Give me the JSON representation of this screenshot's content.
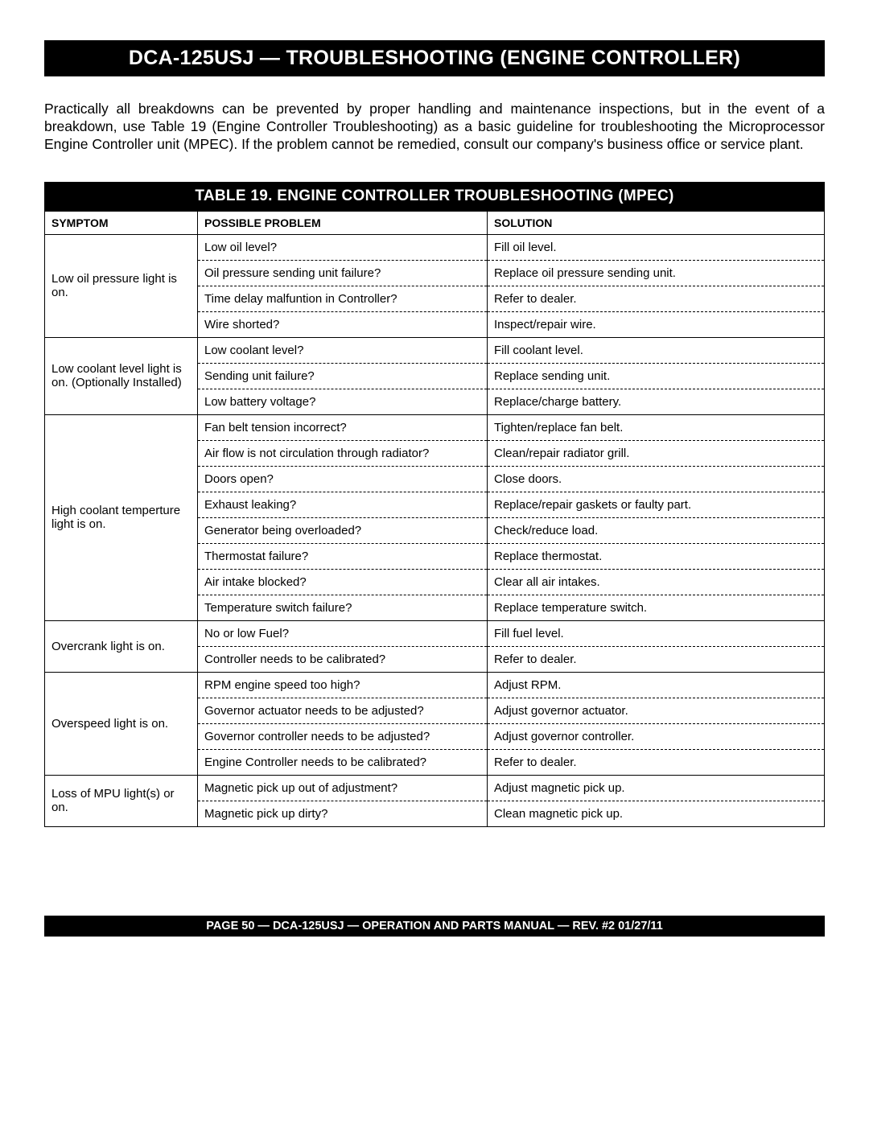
{
  "title": "DCA-125USJ — TROUBLESHOOTING (ENGINE CONTROLLER)",
  "intro": "Practically all breakdowns can be prevented by proper handling and maintenance inspections, but in the event of a breakdown, use  Table 19 (Engine Controller Troubleshooting) as a basic guideline for troubleshooting the Microprocessor Engine Controller unit (MPEC).  If the problem cannot be remedied, consult our company's business office or service plant.",
  "table_title": "TABLE 19. ENGINE CONTROLLER TROUBLESHOOTING (MPEC)",
  "columns": {
    "symptom": "Symptom",
    "problem": "Possible Problem",
    "solution": "Solution"
  },
  "groups": [
    {
      "symptom": "Low oil pressure light is on.",
      "rows": [
        {
          "problem": "Low oil level?",
          "solution": "Fill oil level."
        },
        {
          "problem": "Oil pressure sending unit failure?",
          "solution": "Replace oil pressure sending unit."
        },
        {
          "problem": "Time delay malfuntion in Controller?",
          "solution": "Refer to dealer."
        },
        {
          "problem": "Wire shorted?",
          "solution": "Inspect/repair wire."
        }
      ]
    },
    {
      "symptom": "Low coolant level light is on. (Optionally Installed)",
      "rows": [
        {
          "problem": "Low coolant level?",
          "solution": "Fill coolant level."
        },
        {
          "problem": "Sending unit failure?",
          "solution": "Replace sending unit."
        },
        {
          "problem": "Low battery voltage?",
          "solution": "Replace/charge battery."
        }
      ]
    },
    {
      "symptom": "High coolant temperture light is on.",
      "rows": [
        {
          "problem": "Fan belt tension incorrect?",
          "solution": "Tighten/replace fan belt."
        },
        {
          "problem": "Air flow is not circulation through radiator?",
          "solution": "Clean/repair radiator grill."
        },
        {
          "problem": "Doors open?",
          "solution": "Close doors."
        },
        {
          "problem": "Exhaust leaking?",
          "solution": "Replace/repair gaskets or faulty part."
        },
        {
          "problem": "Generator being overloaded?",
          "solution": "Check/reduce load."
        },
        {
          "problem": "Thermostat failure?",
          "solution": "Replace thermostat."
        },
        {
          "problem": "Air intake blocked?",
          "solution": "Clear all air intakes."
        },
        {
          "problem": "Temperature switch failure?",
          "solution": "Replace temperature switch."
        }
      ]
    },
    {
      "symptom": "Overcrank light is on.",
      "rows": [
        {
          "problem": "No or low Fuel?",
          "solution": "Fill fuel level."
        },
        {
          "problem": "Controller needs to be calibrated?",
          "solution": "Refer to dealer."
        }
      ]
    },
    {
      "symptom": "Overspeed light is on.",
      "rows": [
        {
          "problem": "RPM engine speed too high?",
          "solution": "Adjust RPM."
        },
        {
          "problem": "Governor actuator needs to be adjusted?",
          "solution": "Adjust governor actuator."
        },
        {
          "problem": "Governor controller needs to be adjusted?",
          "solution": "Adjust governor controller."
        },
        {
          "problem": "Engine Controller needs to be calibrated?",
          "solution": "Refer to dealer."
        }
      ]
    },
    {
      "symptom": "Loss of MPU light(s) or on.",
      "rows": [
        {
          "problem": "Magnetic pick up out of adjustment?",
          "solution": "Adjust magnetic pick up."
        },
        {
          "problem": "Magnetic pick up dirty?",
          "solution": "Clean magnetic pick up."
        }
      ]
    }
  ],
  "footer": "PAGE 50 — DCA-125USJ —  OPERATION AND PARTS  MANUAL — REV. #2   01/27/11"
}
